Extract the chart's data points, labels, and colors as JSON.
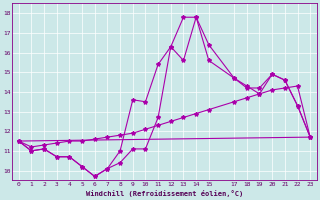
{
  "title": "",
  "xlabel": "Windchill (Refroidissement éolien,°C)",
  "ylabel": "",
  "bg_color": "#cce8e8",
  "line_color": "#aa00aa",
  "grid_color": "#ffffff",
  "xlim": [
    -0.5,
    23.5
  ],
  "ylim": [
    9.5,
    18.5
  ],
  "yticks": [
    10,
    11,
    12,
    13,
    14,
    15,
    16,
    17,
    18
  ],
  "xticks": [
    0,
    1,
    2,
    3,
    4,
    5,
    6,
    7,
    8,
    9,
    10,
    11,
    12,
    13,
    14,
    15,
    17,
    18,
    19,
    20,
    21,
    22,
    23
  ],
  "series": [
    {
      "x": [
        0,
        1,
        2,
        3,
        4,
        5,
        6,
        7,
        8,
        9,
        10,
        11,
        12,
        13,
        14,
        15,
        17,
        18,
        19,
        20,
        21,
        22,
        23
      ],
      "y": [
        11.5,
        11.0,
        11.1,
        10.7,
        10.7,
        10.2,
        9.7,
        10.1,
        10.4,
        11.1,
        11.1,
        12.7,
        16.3,
        15.6,
        17.8,
        16.4,
        14.7,
        14.3,
        13.9,
        14.9,
        14.6,
        13.3,
        11.7
      ]
    },
    {
      "x": [
        0,
        1,
        2,
        3,
        4,
        5,
        6,
        7,
        8,
        9,
        10,
        11,
        12,
        13,
        14,
        15,
        17,
        18,
        19,
        20,
        21,
        22,
        23
      ],
      "y": [
        11.5,
        11.0,
        11.1,
        10.7,
        10.7,
        10.2,
        9.7,
        10.1,
        11.0,
        13.6,
        13.5,
        15.4,
        16.3,
        17.8,
        17.8,
        15.6,
        14.7,
        14.2,
        14.2,
        14.9,
        14.6,
        13.3,
        11.7
      ]
    },
    {
      "x": [
        0,
        23
      ],
      "y": [
        11.5,
        11.7
      ],
      "no_marker": true
    },
    {
      "x": [
        0,
        1,
        2,
        3,
        4,
        5,
        6,
        7,
        8,
        9,
        10,
        11,
        12,
        13,
        14,
        15,
        17,
        18,
        19,
        20,
        21,
        22,
        23
      ],
      "y": [
        11.5,
        11.2,
        11.3,
        11.4,
        11.5,
        11.5,
        11.6,
        11.7,
        11.8,
        11.9,
        12.1,
        12.3,
        12.5,
        12.7,
        12.9,
        13.1,
        13.5,
        13.7,
        13.9,
        14.1,
        14.2,
        14.3,
        11.7
      ]
    }
  ]
}
